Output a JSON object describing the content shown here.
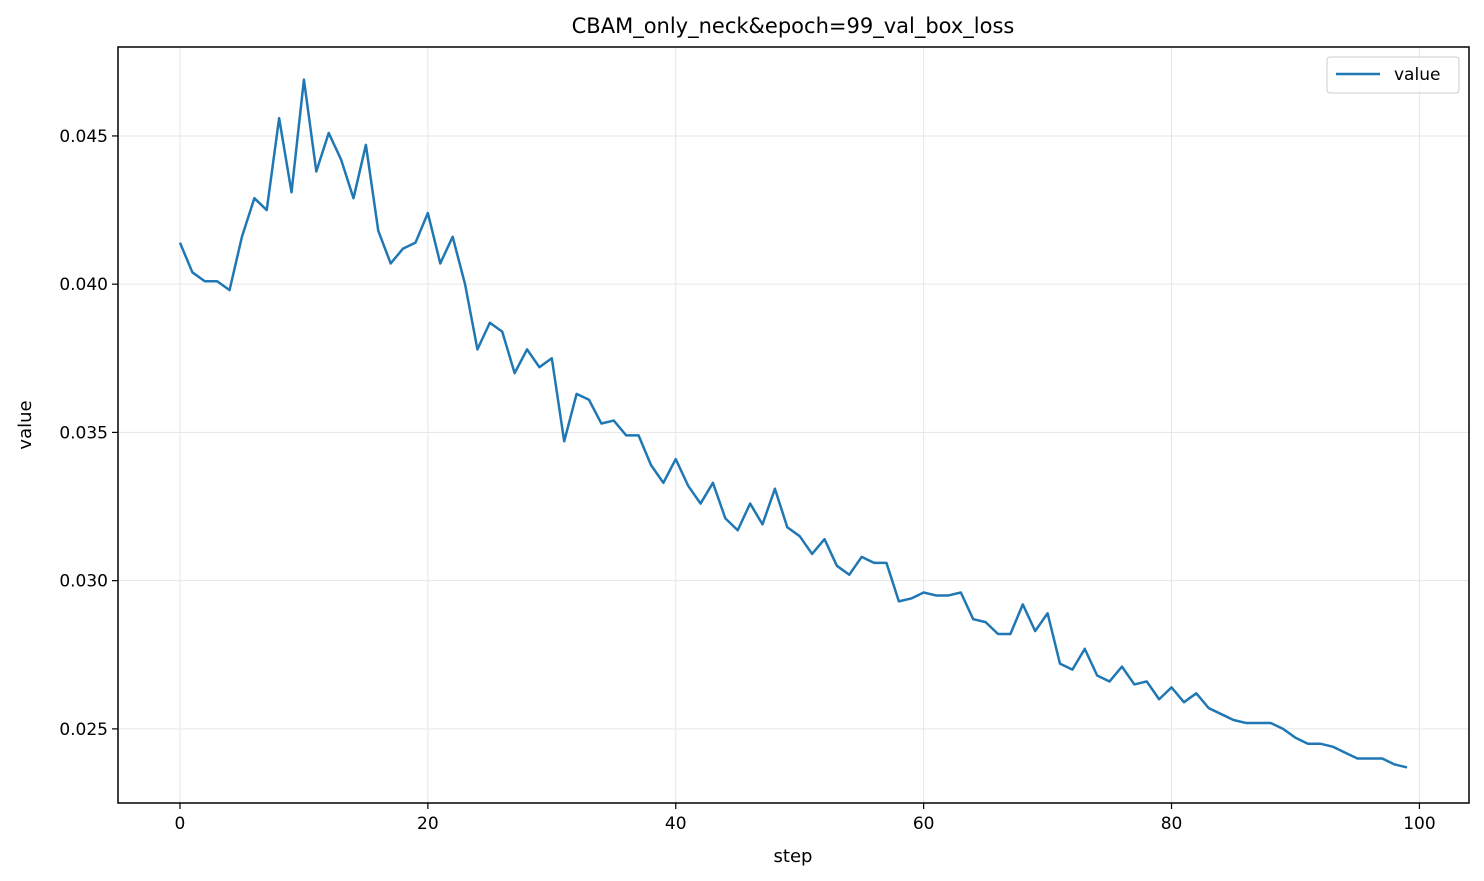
{
  "chart_data": {
    "type": "line",
    "title": "CBAM_only_neck&epoch=99_val_box_loss",
    "xlabel": "step",
    "ylabel": "value",
    "xlim": [
      -5,
      104
    ],
    "ylim": [
      0.0225,
      0.048
    ],
    "xticks": [
      0,
      20,
      40,
      60,
      80,
      100
    ],
    "xtick_labels": [
      "0",
      "20",
      "40",
      "60",
      "80",
      "100"
    ],
    "yticks": [
      0.025,
      0.03,
      0.035,
      0.04,
      0.045
    ],
    "ytick_labels": [
      "0.025",
      "0.030",
      "0.035",
      "0.040",
      "0.045"
    ],
    "grid": true,
    "legend_position": "top-right",
    "series": [
      {
        "name": "value",
        "color": "#1f77b4",
        "x": [
          0,
          1,
          2,
          3,
          4,
          5,
          6,
          7,
          8,
          9,
          10,
          11,
          12,
          13,
          14,
          15,
          16,
          17,
          18,
          19,
          20,
          21,
          22,
          23,
          24,
          25,
          26,
          27,
          28,
          29,
          30,
          31,
          32,
          33,
          34,
          35,
          36,
          37,
          38,
          39,
          40,
          41,
          42,
          43,
          44,
          45,
          46,
          47,
          48,
          49,
          50,
          51,
          52,
          53,
          54,
          55,
          56,
          57,
          58,
          59,
          60,
          61,
          62,
          63,
          64,
          65,
          66,
          67,
          68,
          69,
          70,
          71,
          72,
          73,
          74,
          75,
          76,
          77,
          78,
          79,
          80,
          81,
          82,
          83,
          84,
          85,
          86,
          87,
          88,
          89,
          90,
          91,
          92,
          93,
          94,
          95,
          96,
          97,
          98,
          99
        ],
        "values": [
          0.0414,
          0.0404,
          0.0401,
          0.0401,
          0.0398,
          0.0416,
          0.0429,
          0.0425,
          0.0456,
          0.0431,
          0.0469,
          0.0438,
          0.0451,
          0.0442,
          0.0429,
          0.0447,
          0.0418,
          0.0407,
          0.0412,
          0.0414,
          0.0424,
          0.0407,
          0.0416,
          0.04,
          0.0378,
          0.0387,
          0.0384,
          0.037,
          0.0378,
          0.0372,
          0.0375,
          0.0347,
          0.0363,
          0.0361,
          0.0353,
          0.0354,
          0.0349,
          0.0349,
          0.0339,
          0.0333,
          0.0341,
          0.0332,
          0.0326,
          0.0333,
          0.0321,
          0.0317,
          0.0326,
          0.0319,
          0.0331,
          0.0318,
          0.0315,
          0.0309,
          0.0314,
          0.0305,
          0.0302,
          0.0308,
          0.0306,
          0.0306,
          0.0293,
          0.0294,
          0.0296,
          0.0295,
          0.0295,
          0.0296,
          0.0287,
          0.0286,
          0.0282,
          0.0282,
          0.0292,
          0.0283,
          0.0289,
          0.0272,
          0.027,
          0.0277,
          0.0268,
          0.0266,
          0.0271,
          0.0265,
          0.0266,
          0.026,
          0.0264,
          0.0259,
          0.0262,
          0.0257,
          0.0255,
          0.0253,
          0.0252,
          0.0252,
          0.0252,
          0.025,
          0.0247,
          0.0245,
          0.0245,
          0.0244,
          0.0242,
          0.024,
          0.024,
          0.024,
          0.0238,
          0.0237
        ]
      }
    ]
  }
}
